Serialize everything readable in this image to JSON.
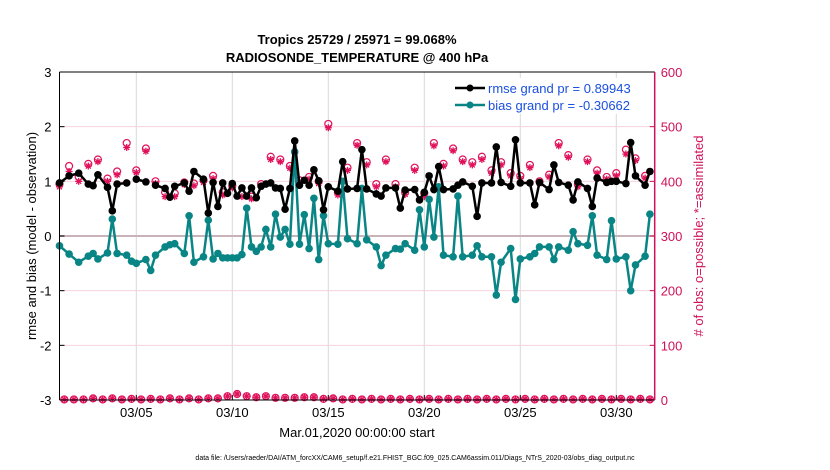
{
  "chart_data": {
    "type": "line",
    "title": "Tropics 25729 / 25971 = 99.068%",
    "subtitle": "RADIOSONDE_TEMPERATURE @ 400 hPa",
    "xlabel": "Mar.01,2020 00:00:00 start",
    "ylabel": "rmse and bias (model - observation)",
    "ylabel_right": "# of obs: o=possible; *=assimilated",
    "x_unit": "day of March 2020",
    "xlim": [
      1,
      32
    ],
    "ylim": [
      -3,
      3
    ],
    "ylim_right": [
      0,
      600
    ],
    "xticks": [
      5,
      10,
      15,
      20,
      25,
      30
    ],
    "xtick_labels": [
      "03/05",
      "03/10",
      "03/15",
      "03/20",
      "03/25",
      "03/30"
    ],
    "yticks": [
      -3,
      -2,
      -1,
      0,
      1,
      2,
      3
    ],
    "ytick_labels": [
      "-3",
      "-2",
      "-1",
      "0",
      "1",
      "2",
      "3"
    ],
    "yticks_right": [
      0,
      100,
      200,
      300,
      400,
      500,
      600
    ],
    "ytick_labels_right": [
      "0",
      "100",
      "200",
      "300",
      "400",
      "500",
      "600"
    ],
    "grid": true,
    "legend_placement": "top-right",
    "footer": "data file: /Users/raeder/DAI/ATM_forcXX/CAM6_setup/f.e21.FHIST_BGC.f09_025.CAM6assim.011/Diags_NTrS_2020-03/obs_diag_output.nc",
    "colors": {
      "rmse": "#000000",
      "bias": "#0a8585",
      "obs": "#e0105a",
      "right_axis": "#d0105a",
      "zero_line": "#c8b4b8",
      "hgrid": "#f6d3de",
      "vgrid": "#d8d8d8"
    },
    "x": [
      1,
      1.5,
      2,
      2.5,
      2.75,
      3,
      3.5,
      3.75,
      4,
      4.5,
      4.75,
      5,
      5.5,
      5.75,
      6,
      6.5,
      6.75,
      7,
      7.5,
      7.75,
      8,
      8.5,
      8.75,
      9,
      9.25,
      9.5,
      9.75,
      10,
      10.25,
      10.5,
      10.75,
      11,
      11.25,
      11.5,
      11.75,
      12,
      12.25,
      12.5,
      12.75,
      13,
      13.25,
      13.5,
      13.75,
      14,
      14.25,
      14.5,
      14.75,
      15,
      15.5,
      15.75,
      16,
      16.5,
      16.75,
      17,
      17.5,
      17.75,
      18,
      18.5,
      18.75,
      19,
      19.5,
      19.75,
      20,
      20.25,
      20.5,
      20.75,
      21,
      21.5,
      21.75,
      22,
      22.5,
      22.75,
      23,
      23.5,
      23.75,
      24,
      24.5,
      24.75,
      25,
      25.5,
      25.75,
      26,
      26.5,
      26.75,
      27,
      27.5,
      27.75,
      28,
      28.5,
      28.75,
      29,
      29.5,
      29.75,
      30,
      30.5,
      30.75,
      31,
      31.5,
      31.75
    ],
    "series": [
      {
        "name": "rmse grand pr = 0.89943",
        "axis": "left",
        "values": [
          0.97,
          1.1,
          1.15,
          0.95,
          0.92,
          1.12,
          0.89,
          0.46,
          0.95,
          0.97,
          null,
          1.04,
          0.99,
          null,
          0.93,
          0.87,
          0.71,
          0.91,
          0.97,
          0.82,
          1.18,
          1.04,
          0.42,
          0.98,
          0.54,
          0.97,
          0.78,
          0.96,
          0.73,
          0.88,
          0.73,
          0.88,
          0.7,
          0.91,
          0.95,
          0.97,
          0.88,
          0.87,
          0.49,
          0.87,
          1.74,
          0.93,
          1.02,
          0.93,
          1.21,
          1.01,
          0.48,
          0.9,
          0.82,
          1.36,
          0.86,
          0.87,
          1.58,
          0.86,
          0.77,
          0.73,
          0.88,
          0.88,
          0.51,
          0.84,
          0.85,
          0.66,
          0.8,
          1.1,
          0.85,
          1.27,
          0.85,
          0.86,
          0.93,
          0.99,
          0.91,
          0.36,
          0.97,
          0.97,
          1.63,
          0.98,
          0.91,
          1.76,
          0.97,
          0.97,
          0.57,
          0.98,
          0.85,
          1.3,
          0.98,
          0.93,
          0.66,
          0.99,
          0.87,
          0.54,
          1.06,
          0.98,
          1.0,
          1.0,
          0.96,
          1.71,
          1.1,
          0.93,
          1.18
        ]
      },
      {
        "name": "bias grand pr = -0.30662",
        "axis": "left",
        "values": [
          -0.18,
          -0.33,
          -0.48,
          -0.37,
          -0.32,
          -0.42,
          -0.31,
          0.31,
          -0.32,
          -0.35,
          -0.46,
          -0.5,
          -0.43,
          -0.63,
          -0.35,
          -0.2,
          -0.16,
          -0.14,
          -0.32,
          0.37,
          -0.48,
          -0.38,
          0.29,
          -0.42,
          -0.32,
          -0.4,
          -0.4,
          -0.4,
          -0.4,
          -0.34,
          0.51,
          -0.2,
          -0.28,
          -0.2,
          0.12,
          -0.2,
          0.4,
          -0.02,
          0.12,
          -0.15,
          1.54,
          -0.15,
          0.39,
          -0.23,
          0.69,
          -0.43,
          0.37,
          -0.14,
          -0.15,
          1.0,
          -0.05,
          -0.14,
          0.87,
          -0.07,
          -0.2,
          -0.54,
          -0.35,
          -0.23,
          -0.24,
          -0.14,
          -0.26,
          0.48,
          -0.2,
          0.67,
          -0.02,
          0.9,
          -0.35,
          -0.38,
          0.73,
          -0.38,
          -0.35,
          -0.18,
          -0.38,
          -0.38,
          -1.08,
          -0.48,
          -0.23,
          -1.16,
          -0.42,
          -0.38,
          -0.32,
          -0.2,
          -0.2,
          -0.43,
          -0.2,
          -0.26,
          0.08,
          -0.14,
          -0.17,
          0.37,
          -0.35,
          -0.43,
          0.28,
          -0.42,
          -0.38,
          -1.0,
          -0.53,
          -0.37,
          0.4
        ]
      }
    ],
    "obs": {
      "x": [
        1,
        1.5,
        2,
        2.5,
        3,
        3.5,
        4,
        4.5,
        5,
        5.5,
        6,
        6.5,
        7,
        7.5,
        8,
        8.5,
        9,
        9.5,
        10,
        10.5,
        11,
        11.5,
        12,
        12.5,
        13,
        13.5,
        14,
        14.5,
        15,
        15.5,
        16,
        16.5,
        17,
        17.5,
        18,
        18.5,
        19,
        19.5,
        20,
        20.5,
        21,
        21.5,
        22,
        22.5,
        23,
        23.5,
        24,
        24.5,
        25,
        25.5,
        26,
        26.5,
        27,
        27.5,
        28,
        28.5,
        29,
        29.5,
        30,
        30.5,
        31,
        31.5
      ],
      "possible": [
        395,
        428,
        408,
        432,
        440,
        405,
        418,
        470,
        420,
        460,
        400,
        380,
        378,
        398,
        396,
        402,
        410,
        380,
        392,
        378,
        372,
        395,
        445,
        440,
        428,
        402,
        408,
        400,
        505,
        380,
        425,
        470,
        435,
        395,
        440,
        395,
        380,
        425,
        378,
        470,
        432,
        460,
        440,
        435,
        445,
        420,
        435,
        415,
        410,
        430,
        400,
        412,
        470,
        448,
        395,
        440,
        420,
        408,
        415,
        458,
        442,
        410
      ],
      "assimilated": [
        390,
        418,
        400,
        428,
        436,
        400,
        412,
        462,
        416,
        455,
        396,
        372,
        372,
        394,
        392,
        398,
        405,
        375,
        388,
        372,
        368,
        392,
        440,
        436,
        424,
        398,
        404,
        396,
        498,
        375,
        420,
        466,
        430,
        390,
        436,
        390,
        376,
        420,
        372,
        465,
        428,
        456,
        436,
        430,
        440,
        415,
        430,
        410,
        405,
        425,
        396,
        408,
        465,
        444,
        390,
        436,
        415,
        404,
        410,
        450,
        438,
        406
      ],
      "x_low": [
        1.25,
        1.75,
        2.25,
        2.75,
        3.25,
        3.75,
        4.25,
        4.75,
        5.25,
        5.75,
        6.25,
        6.75,
        7.25,
        7.75,
        8.25,
        8.75,
        9.25,
        9.75,
        10.25,
        10.75,
        11.25,
        11.75,
        12.25,
        12.75,
        13.25,
        13.75,
        14.25,
        14.75,
        15.25,
        15.75,
        16.25,
        16.75,
        17.25,
        17.75,
        18.25,
        18.75,
        19.25,
        19.75,
        20.25,
        20.75,
        21.25,
        21.75,
        22.25,
        22.75,
        23.25,
        23.75,
        24.25,
        24.75,
        25.25,
        25.75,
        26.25,
        26.75,
        27.25,
        27.75,
        28.25,
        28.75,
        29.25,
        29.75,
        30.25,
        30.75,
        31.25,
        31.75
      ],
      "low_possible": [
        1,
        1,
        1,
        3,
        1,
        3,
        1,
        2,
        1,
        2,
        1,
        3,
        1,
        3,
        1,
        3,
        3,
        7,
        11,
        7,
        5,
        7,
        4,
        4,
        4,
        5,
        5,
        2,
        3,
        1,
        2,
        1,
        2,
        1,
        2,
        1,
        2,
        1,
        2,
        1,
        2,
        1,
        2,
        1,
        2,
        1,
        2,
        1,
        2,
        1,
        2,
        1,
        2,
        1,
        2,
        1,
        2,
        1,
        2,
        1,
        2,
        1
      ]
    }
  }
}
